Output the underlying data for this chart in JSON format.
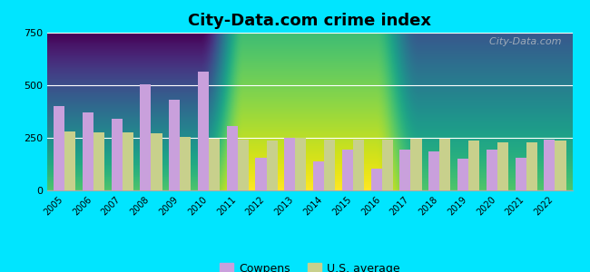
{
  "title": "City-Data.com crime index",
  "years": [
    2005,
    2006,
    2007,
    2008,
    2009,
    2010,
    2011,
    2012,
    2013,
    2014,
    2015,
    2016,
    2017,
    2018,
    2019,
    2020,
    2021,
    2022
  ],
  "cowpens": [
    400,
    370,
    340,
    505,
    430,
    565,
    305,
    155,
    250,
    140,
    195,
    105,
    195,
    185,
    150,
    195,
    155,
    240
  ],
  "us_avg": [
    280,
    275,
    275,
    270,
    255,
    245,
    240,
    235,
    250,
    240,
    240,
    240,
    245,
    245,
    235,
    230,
    230,
    235
  ],
  "cowpens_color": "#c9a0dc",
  "us_avg_color": "#c8d08c",
  "bar_width": 0.38,
  "ylim": [
    0,
    750
  ],
  "yticks": [
    0,
    250,
    500,
    750
  ],
  "outer_bg": "#00e5ff",
  "title_fontsize": 13,
  "watermark_text": "  City-Data.com",
  "legend_cowpens": "Cowpens",
  "legend_us": "U.S. average"
}
